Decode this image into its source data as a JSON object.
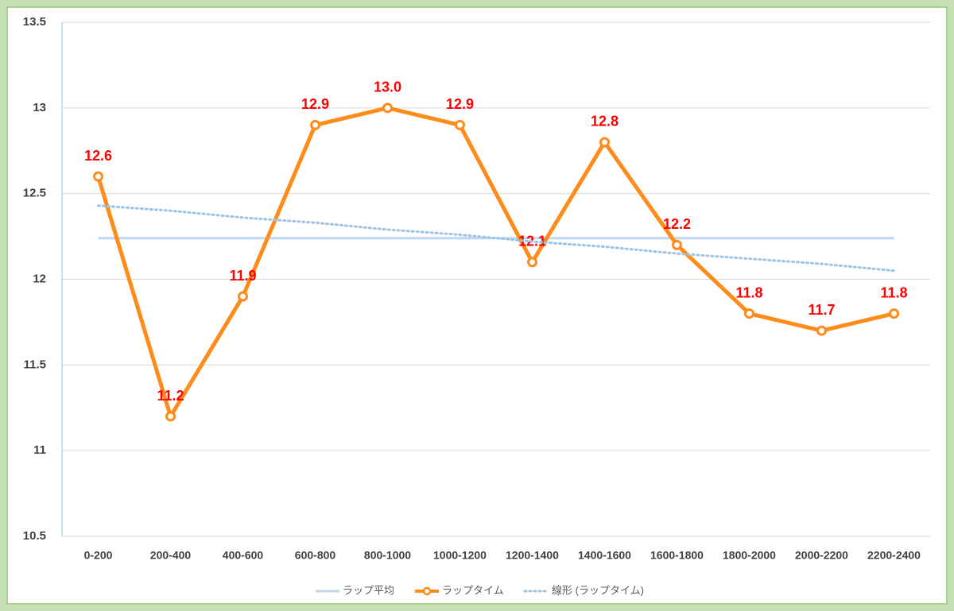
{
  "chart_data": {
    "type": "line",
    "categories": [
      "0-200",
      "200-400",
      "400-600",
      "600-800",
      "800-1000",
      "1000-1200",
      "1200-1400",
      "1400-1600",
      "1600-1800",
      "1800-2000",
      "2000-2200",
      "2200-2400"
    ],
    "series": [
      {
        "name": "ラップ平均",
        "color": "#bdd7ee",
        "style": "solid",
        "markers": false,
        "values": [
          12.24,
          12.24,
          12.24,
          12.24,
          12.24,
          12.24,
          12.24,
          12.24,
          12.24,
          12.24,
          12.24,
          12.24
        ]
      },
      {
        "name": "ラップタイム",
        "color": "#ff8c1a",
        "style": "solid",
        "markers": true,
        "values": [
          12.6,
          11.2,
          11.9,
          12.9,
          13.0,
          12.9,
          12.1,
          12.8,
          12.2,
          11.8,
          11.7,
          11.8
        ],
        "value_labels": [
          "12.6",
          "11.2",
          "11.9",
          "12.9",
          "13.0",
          "12.9",
          "12.1",
          "12.8",
          "12.2",
          "11.8",
          "11.7",
          "11.8"
        ],
        "label_color": "#ff0000"
      },
      {
        "name": "線形 (ラップタイム)",
        "color": "#9dc3e6",
        "style": "dotted",
        "markers": false,
        "values": [
          12.43,
          12.4,
          12.36,
          12.33,
          12.29,
          12.26,
          12.22,
          12.19,
          12.15,
          12.12,
          12.09,
          12.05
        ]
      }
    ],
    "ylim": [
      10.5,
      13.5
    ],
    "yticks": [
      10.5,
      11,
      11.5,
      12,
      12.5,
      13,
      13.5
    ],
    "grid": true,
    "legend": "bottom"
  }
}
